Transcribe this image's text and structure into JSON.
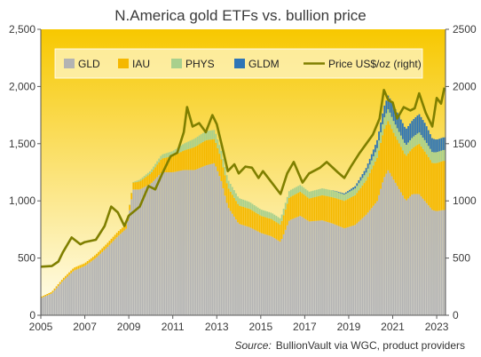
{
  "chart_data": {
    "type": "area",
    "title": "N.America gold ETFs vs. bullion price",
    "source_label": "Source:",
    "source_text": "BullionVault via WGC, product providers",
    "x_ticks": [
      "2005",
      "2007",
      "2009",
      "2011",
      "2013",
      "2015",
      "2017",
      "2019",
      "2021",
      "2023"
    ],
    "y_left_ticks": [
      "0",
      "500",
      "1,000",
      "1,500",
      "2,000",
      "2,500"
    ],
    "y_right_ticks": [
      "0",
      "500",
      "1000",
      "1500",
      "2000",
      "2500"
    ],
    "xlim": [
      2005.0,
      2023.4
    ],
    "ylim_left": [
      0,
      2500
    ],
    "ylim_right": [
      0,
      2500
    ],
    "legend_position": "top",
    "grid": false,
    "colors": {
      "GLD": "#b3b3b3",
      "IAU": "#f5b800",
      "PHYS": "#a8d08d",
      "GLDM": "#2e75b6",
      "Price": "#7f7f00",
      "bg_top": "#f7c800",
      "bg_bottom": "#fffef0"
    },
    "series": [
      {
        "name": "GLD",
        "kind": "stacked-bar",
        "points": [
          [
            2005.0,
            150
          ],
          [
            2005.5,
            190
          ],
          [
            2006.0,
            300
          ],
          [
            2006.5,
            390
          ],
          [
            2007.0,
            430
          ],
          [
            2007.5,
            500
          ],
          [
            2008.0,
            590
          ],
          [
            2008.5,
            690
          ],
          [
            2008.9,
            760
          ],
          [
            2009.0,
            870
          ],
          [
            2009.2,
            1100
          ],
          [
            2009.5,
            1100
          ],
          [
            2010.0,
            1150
          ],
          [
            2010.5,
            1250
          ],
          [
            2011.0,
            1250
          ],
          [
            2011.5,
            1270
          ],
          [
            2012.0,
            1270
          ],
          [
            2012.5,
            1310
          ],
          [
            2012.9,
            1330
          ],
          [
            2013.2,
            1180
          ],
          [
            2013.5,
            950
          ],
          [
            2014.0,
            800
          ],
          [
            2014.5,
            770
          ],
          [
            2015.0,
            720
          ],
          [
            2015.5,
            690
          ],
          [
            2015.9,
            640
          ],
          [
            2016.3,
            830
          ],
          [
            2016.8,
            870
          ],
          [
            2017.2,
            820
          ],
          [
            2017.8,
            830
          ],
          [
            2018.3,
            800
          ],
          [
            2018.8,
            760
          ],
          [
            2019.3,
            790
          ],
          [
            2019.8,
            880
          ],
          [
            2020.3,
            1000
          ],
          [
            2020.6,
            1200
          ],
          [
            2020.8,
            1270
          ],
          [
            2021.0,
            1200
          ],
          [
            2021.3,
            1100
          ],
          [
            2021.6,
            1000
          ],
          [
            2021.9,
            1060
          ],
          [
            2022.2,
            1060
          ],
          [
            2022.5,
            990
          ],
          [
            2022.8,
            920
          ],
          [
            2023.0,
            910
          ],
          [
            2023.3,
            920
          ]
        ]
      },
      {
        "name": "IAU",
        "kind": "stacked-bar",
        "points": [
          [
            2005.0,
            10
          ],
          [
            2005.5,
            15
          ],
          [
            2006.0,
            20
          ],
          [
            2006.5,
            25
          ],
          [
            2007.0,
            25
          ],
          [
            2007.5,
            30
          ],
          [
            2008.0,
            35
          ],
          [
            2008.5,
            40
          ],
          [
            2008.9,
            40
          ],
          [
            2009.0,
            45
          ],
          [
            2009.2,
            60
          ],
          [
            2009.5,
            70
          ],
          [
            2010.0,
            90
          ],
          [
            2010.5,
            120
          ],
          [
            2011.0,
            140
          ],
          [
            2011.5,
            170
          ],
          [
            2012.0,
            200
          ],
          [
            2012.5,
            220
          ],
          [
            2012.9,
            210
          ],
          [
            2013.2,
            190
          ],
          [
            2013.5,
            170
          ],
          [
            2014.0,
            160
          ],
          [
            2014.5,
            160
          ],
          [
            2015.0,
            150
          ],
          [
            2015.5,
            150
          ],
          [
            2015.9,
            150
          ],
          [
            2016.3,
            200
          ],
          [
            2016.8,
            210
          ],
          [
            2017.2,
            200
          ],
          [
            2017.8,
            220
          ],
          [
            2018.3,
            230
          ],
          [
            2018.8,
            240
          ],
          [
            2019.3,
            260
          ],
          [
            2019.8,
            300
          ],
          [
            2020.3,
            380
          ],
          [
            2020.6,
            420
          ],
          [
            2020.8,
            430
          ],
          [
            2021.0,
            410
          ],
          [
            2021.3,
            400
          ],
          [
            2021.6,
            390
          ],
          [
            2021.9,
            400
          ],
          [
            2022.2,
            440
          ],
          [
            2022.5,
            430
          ],
          [
            2022.8,
            410
          ],
          [
            2023.0,
            420
          ],
          [
            2023.3,
            430
          ]
        ]
      },
      {
        "name": "PHYS",
        "kind": "stacked-bar",
        "points": [
          [
            2005.0,
            0
          ],
          [
            2005.5,
            0
          ],
          [
            2006.0,
            0
          ],
          [
            2006.5,
            0
          ],
          [
            2007.0,
            0
          ],
          [
            2007.5,
            0
          ],
          [
            2008.0,
            0
          ],
          [
            2008.5,
            0
          ],
          [
            2008.9,
            0
          ],
          [
            2009.0,
            0
          ],
          [
            2009.2,
            5
          ],
          [
            2009.5,
            15
          ],
          [
            2010.0,
            25
          ],
          [
            2010.5,
            35
          ],
          [
            2011.0,
            45
          ],
          [
            2011.5,
            60
          ],
          [
            2012.0,
            75
          ],
          [
            2012.5,
            80
          ],
          [
            2012.9,
            80
          ],
          [
            2013.2,
            75
          ],
          [
            2013.5,
            70
          ],
          [
            2014.0,
            65
          ],
          [
            2014.5,
            60
          ],
          [
            2015.0,
            55
          ],
          [
            2015.5,
            55
          ],
          [
            2015.9,
            55
          ],
          [
            2016.3,
            60
          ],
          [
            2016.8,
            60
          ],
          [
            2017.2,
            60
          ],
          [
            2017.8,
            60
          ],
          [
            2018.3,
            60
          ],
          [
            2018.8,
            55
          ],
          [
            2019.3,
            60
          ],
          [
            2019.8,
            70
          ],
          [
            2020.3,
            85
          ],
          [
            2020.6,
            100
          ],
          [
            2020.8,
            105
          ],
          [
            2021.0,
            105
          ],
          [
            2021.3,
            100
          ],
          [
            2021.6,
            95
          ],
          [
            2021.9,
            95
          ],
          [
            2022.2,
            100
          ],
          [
            2022.5,
            100
          ],
          [
            2022.8,
            95
          ],
          [
            2023.0,
            95
          ],
          [
            2023.3,
            95
          ]
        ]
      },
      {
        "name": "GLDM",
        "kind": "stacked-bar",
        "points": [
          [
            2005.0,
            0
          ],
          [
            2018.2,
            0
          ],
          [
            2018.5,
            5
          ],
          [
            2018.8,
            10
          ],
          [
            2019.3,
            20
          ],
          [
            2019.8,
            40
          ],
          [
            2020.3,
            70
          ],
          [
            2020.6,
            100
          ],
          [
            2020.8,
            120
          ],
          [
            2021.0,
            130
          ],
          [
            2021.3,
            140
          ],
          [
            2021.6,
            140
          ],
          [
            2021.9,
            150
          ],
          [
            2022.2,
            160
          ],
          [
            2022.5,
            150
          ],
          [
            2022.8,
            120
          ],
          [
            2023.0,
            110
          ],
          [
            2023.3,
            110
          ]
        ]
      },
      {
        "name": "Price US$/oz (right)",
        "kind": "line",
        "axis": "right",
        "points": [
          [
            2005.0,
            425
          ],
          [
            2005.5,
            430
          ],
          [
            2005.8,
            470
          ],
          [
            2006.0,
            550
          ],
          [
            2006.4,
            680
          ],
          [
            2006.8,
            620
          ],
          [
            2007.0,
            640
          ],
          [
            2007.5,
            660
          ],
          [
            2007.9,
            780
          ],
          [
            2008.2,
            950
          ],
          [
            2008.5,
            900
          ],
          [
            2008.8,
            780
          ],
          [
            2009.0,
            870
          ],
          [
            2009.5,
            950
          ],
          [
            2009.9,
            1130
          ],
          [
            2010.2,
            1100
          ],
          [
            2010.5,
            1230
          ],
          [
            2010.9,
            1390
          ],
          [
            2011.2,
            1420
          ],
          [
            2011.5,
            1600
          ],
          [
            2011.65,
            1820
          ],
          [
            2011.9,
            1650
          ],
          [
            2012.2,
            1680
          ],
          [
            2012.5,
            1600
          ],
          [
            2012.8,
            1750
          ],
          [
            2013.0,
            1670
          ],
          [
            2013.3,
            1430
          ],
          [
            2013.5,
            1260
          ],
          [
            2013.8,
            1320
          ],
          [
            2014.0,
            1240
          ],
          [
            2014.3,
            1300
          ],
          [
            2014.6,
            1290
          ],
          [
            2014.9,
            1200
          ],
          [
            2015.1,
            1260
          ],
          [
            2015.5,
            1160
          ],
          [
            2015.9,
            1060
          ],
          [
            2016.2,
            1240
          ],
          [
            2016.5,
            1340
          ],
          [
            2016.9,
            1160
          ],
          [
            2017.2,
            1240
          ],
          [
            2017.7,
            1290
          ],
          [
            2018.0,
            1340
          ],
          [
            2018.5,
            1250
          ],
          [
            2018.8,
            1200
          ],
          [
            2019.1,
            1300
          ],
          [
            2019.5,
            1420
          ],
          [
            2019.8,
            1500
          ],
          [
            2020.1,
            1580
          ],
          [
            2020.4,
            1720
          ],
          [
            2020.6,
            1970
          ],
          [
            2020.8,
            1880
          ],
          [
            2021.0,
            1860
          ],
          [
            2021.2,
            1720
          ],
          [
            2021.5,
            1820
          ],
          [
            2021.8,
            1790
          ],
          [
            2022.0,
            1810
          ],
          [
            2022.2,
            1940
          ],
          [
            2022.5,
            1770
          ],
          [
            2022.8,
            1650
          ],
          [
            2023.0,
            1900
          ],
          [
            2023.2,
            1850
          ],
          [
            2023.35,
            1990
          ]
        ]
      }
    ]
  }
}
